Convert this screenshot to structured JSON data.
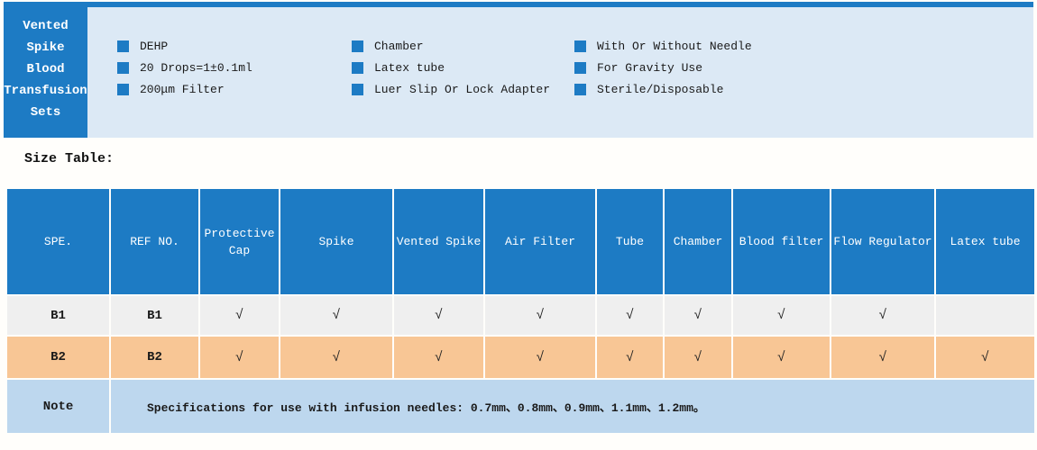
{
  "product": {
    "title_lines": [
      "Vented",
      "Spike",
      "Blood",
      "Transfusion",
      "Sets"
    ],
    "features": [
      [
        "DEHP",
        "20 Drops=1±0.1ml",
        "200μm Filter"
      ],
      [
        "Chamber",
        "Latex tube",
        "Luer Slip Or Lock Adapter"
      ],
      [
        "With Or Without Needle",
        "For Gravity Use",
        "Sterile/Disposable"
      ]
    ]
  },
  "size_table": {
    "label": "Size Table:",
    "columns": [
      "SPE.",
      "REF NO.",
      "Protective Cap",
      "Spike",
      "Vented Spike",
      "Air Filter",
      "Tube",
      "Chamber",
      "Blood filter",
      "Flow Regulator",
      "Latex tube"
    ],
    "rows": [
      {
        "cells": [
          "B1",
          "B1",
          "√",
          "√",
          "√",
          "√",
          "√",
          "√",
          "√",
          "√",
          ""
        ]
      },
      {
        "cells": [
          "B2",
          "B2",
          "√",
          "√",
          "√",
          "√",
          "√",
          "√",
          "√",
          "√",
          "√"
        ]
      }
    ],
    "check_glyph": "√",
    "note_label": "Note",
    "note_text": "Specifications for use with infusion needles: 0.7mm、0.8mm、0.9mm、1.1mm、1.2mm。"
  },
  "colors": {
    "blue": "#1d7bc4",
    "light_blue_panel": "#dce9f5",
    "note_row_bg": "#bdd7ee",
    "row_b1_bg": "#efefef",
    "row_b2_bg": "#f8c695"
  }
}
